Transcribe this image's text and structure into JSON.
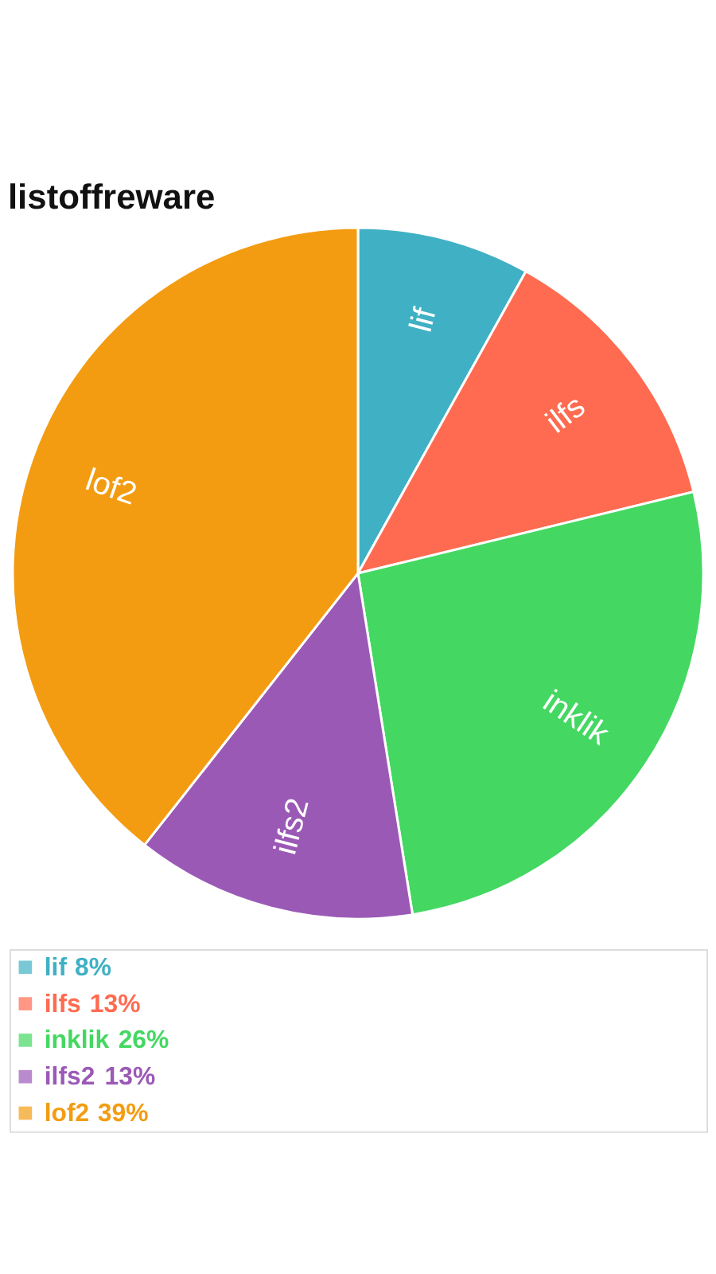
{
  "chart_data": {
    "type": "pie",
    "title": "listoffreware",
    "categories": [
      "lif",
      "ilfs",
      "inklik",
      "ilfs2",
      "lof2"
    ],
    "values": [
      8,
      13,
      26,
      13,
      39
    ],
    "value_labels": [
      "8%",
      "13%",
      "26%",
      "13%",
      "39%"
    ],
    "colors": [
      "#40b0c4",
      "#ff6b50",
      "#44d862",
      "#9b59b6",
      "#f39c12"
    ],
    "legend": "bottom left"
  }
}
